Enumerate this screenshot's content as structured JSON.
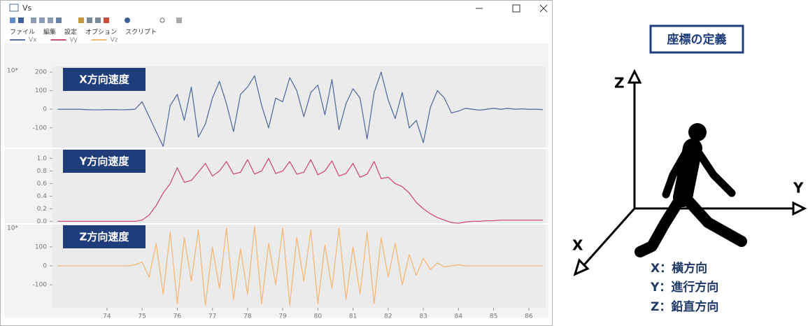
{
  "window": {
    "title": "Vs",
    "menu": [
      "ファイル",
      "編集",
      "設定",
      "オプション",
      "スクリプト"
    ]
  },
  "chart_data": [
    {
      "type": "line",
      "panel_label": "X方向速度",
      "scale_label": "10*",
      "x": [
        72.6,
        72.8,
        73.0,
        73.2,
        73.4,
        73.6,
        73.8,
        74.0,
        74.2,
        74.4,
        74.6,
        74.8,
        75.0,
        75.2,
        75.4,
        75.6,
        75.8,
        76.0,
        76.2,
        76.4,
        76.6,
        76.8,
        77.0,
        77.2,
        77.4,
        77.6,
        77.8,
        78.0,
        78.2,
        78.4,
        78.6,
        78.8,
        79.0,
        79.2,
        79.4,
        79.6,
        79.8,
        80.0,
        80.2,
        80.4,
        80.6,
        80.8,
        81.0,
        81.2,
        81.4,
        81.6,
        81.8,
        82.0,
        82.2,
        82.4,
        82.6,
        82.8,
        83.0,
        83.2,
        83.4,
        83.6,
        83.8,
        84.0,
        84.2,
        84.4,
        84.6,
        84.8,
        85.0,
        85.2,
        85.4,
        85.6,
        85.8,
        86.0,
        86.2,
        86.4
      ],
      "series": [
        {
          "name": "Vx",
          "color": "#5a6e9e",
          "values": [
            0,
            0,
            0,
            0,
            -2,
            -3,
            -3,
            -2,
            -2,
            -3,
            -2,
            0,
            40,
            -40,
            -120,
            -200,
            20,
            80,
            -60,
            120,
            -150,
            -80,
            60,
            150,
            30,
            -120,
            80,
            120,
            180,
            20,
            -100,
            60,
            40,
            170,
            100,
            -40,
            90,
            130,
            -30,
            160,
            -110,
            30,
            110,
            60,
            -160,
            90,
            200,
            50,
            -50,
            90,
            -100,
            -60,
            -180,
            10,
            100,
            60,
            -20,
            -10,
            5,
            0,
            -5,
            0,
            5,
            0,
            5,
            0,
            2,
            0,
            0,
            -2
          ]
        }
      ],
      "xlim": [
        72.45,
        86.48
      ],
      "ylim": [
        -210,
        230
      ],
      "yticks": [
        200,
        100,
        0,
        -100
      ]
    },
    {
      "type": "line",
      "panel_label": "Y方向速度",
      "x": [
        72.6,
        72.8,
        73.0,
        73.2,
        73.4,
        73.6,
        73.8,
        74.0,
        74.2,
        74.4,
        74.6,
        74.8,
        75.0,
        75.2,
        75.4,
        75.6,
        75.8,
        76.0,
        76.2,
        76.4,
        76.6,
        76.8,
        77.0,
        77.2,
        77.4,
        77.6,
        77.8,
        78.0,
        78.2,
        78.4,
        78.6,
        78.8,
        79.0,
        79.2,
        79.4,
        79.6,
        79.8,
        80.0,
        80.2,
        80.4,
        80.6,
        80.8,
        81.0,
        81.2,
        81.4,
        81.6,
        81.8,
        82.0,
        82.2,
        82.4,
        82.6,
        82.8,
        83.0,
        83.2,
        83.4,
        83.6,
        83.8,
        84.0,
        84.2,
        84.4,
        84.6,
        84.8,
        85.0,
        85.2,
        85.4,
        85.6,
        85.8,
        86.0,
        86.2,
        86.4
      ],
      "series": [
        {
          "name": "Vy",
          "color": "#cc4f74",
          "values": [
            0,
            0,
            0,
            0,
            0,
            0,
            0,
            0,
            0,
            0,
            0,
            0,
            0.02,
            0.1,
            0.25,
            0.45,
            0.6,
            0.85,
            0.62,
            0.65,
            0.78,
            0.92,
            0.72,
            0.8,
            0.95,
            0.75,
            0.78,
            0.98,
            0.75,
            0.8,
            1.0,
            0.76,
            0.8,
            0.95,
            0.75,
            0.78,
            0.98,
            0.74,
            0.8,
            0.96,
            0.72,
            0.76,
            0.92,
            0.7,
            0.75,
            0.95,
            0.68,
            0.7,
            0.6,
            0.55,
            0.45,
            0.3,
            0.2,
            0.12,
            0.06,
            0.02,
            -0.02,
            -0.03,
            -0.01,
            0,
            0,
            0.01,
            0.01,
            0.02,
            0.02,
            0.02,
            0.02,
            0.02,
            0.02,
            0.02
          ]
        }
      ],
      "xlim": [
        72.45,
        86.48
      ],
      "ylim": [
        -0.04,
        1.16
      ],
      "yticks": [
        {
          "value": 1,
          "label": "1.0"
        },
        0.8,
        0.6,
        0.4,
        0.2,
        {
          "value": 0,
          "label": "0.0"
        }
      ]
    },
    {
      "type": "line",
      "panel_label": "Z方向速度",
      "scale_label": "10*",
      "x": [
        72.6,
        72.8,
        73.0,
        73.2,
        73.4,
        73.6,
        73.8,
        74.0,
        74.2,
        74.4,
        74.6,
        74.8,
        75.0,
        75.2,
        75.4,
        75.6,
        75.8,
        76.0,
        76.2,
        76.4,
        76.6,
        76.8,
        77.0,
        77.2,
        77.4,
        77.6,
        77.8,
        78.0,
        78.2,
        78.4,
        78.6,
        78.8,
        79.0,
        79.2,
        79.4,
        79.6,
        79.8,
        80.0,
        80.2,
        80.4,
        80.6,
        80.8,
        81.0,
        81.2,
        81.4,
        81.6,
        81.8,
        82.0,
        82.2,
        82.4,
        82.6,
        82.8,
        83.0,
        83.2,
        83.4,
        83.6,
        83.8,
        84.0,
        84.2,
        84.4,
        84.6,
        84.8,
        85.0,
        85.2,
        85.4,
        85.6,
        85.8,
        86.0,
        86.2,
        86.4
      ],
      "series": [
        {
          "name": "Vz",
          "color": "#f4b87a",
          "values": [
            0,
            0,
            0,
            0,
            0,
            0,
            0,
            0,
            0,
            0,
            0,
            5,
            20,
            -60,
            120,
            -150,
            180,
            -200,
            150,
            -80,
            190,
            -210,
            100,
            -120,
            200,
            -180,
            90,
            -150,
            210,
            -200,
            120,
            -100,
            200,
            -210,
            150,
            -80,
            190,
            -200,
            110,
            -120,
            200,
            -180,
            100,
            -150,
            180,
            -200,
            150,
            -60,
            120,
            -100,
            60,
            -50,
            40,
            -20,
            15,
            -5,
            0,
            5,
            0,
            0,
            0,
            0,
            0,
            0,
            0,
            0,
            0,
            0,
            0,
            0
          ]
        }
      ],
      "xlim": [
        72.45,
        86.48
      ],
      "ylim": [
        -222,
        222
      ],
      "yticks": [
        100,
        0,
        -100
      ],
      "xticks": [
        74,
        75,
        76,
        77,
        78,
        79,
        80,
        81,
        82,
        83,
        84,
        85,
        86
      ]
    }
  ],
  "diagram": {
    "title": "座標の定義",
    "axes": [
      "Z",
      "Y",
      "X"
    ],
    "definitions": [
      "X：横方向",
      "Y：進行方向",
      "Z：鉛直方向"
    ]
  }
}
